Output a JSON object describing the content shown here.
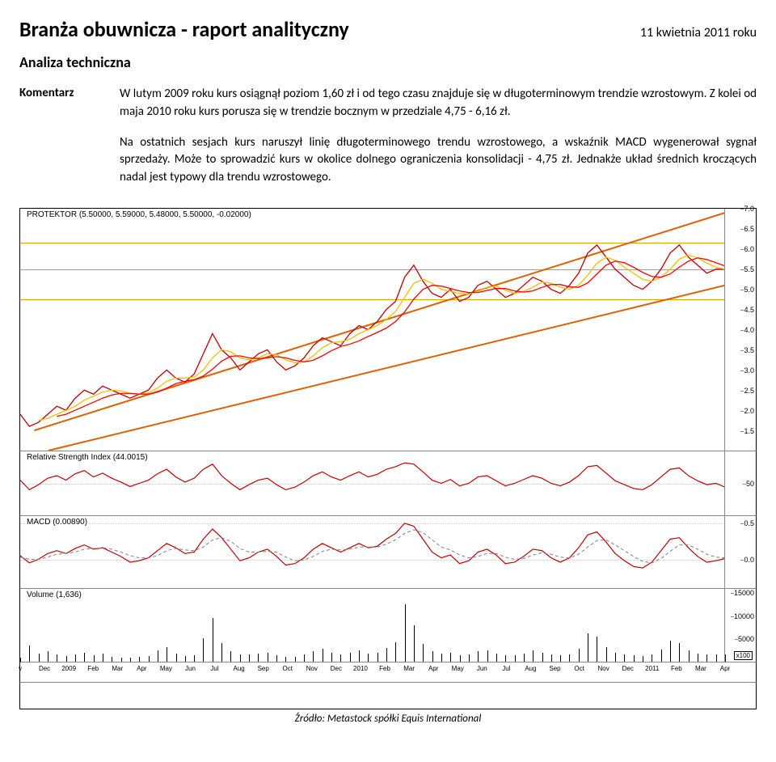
{
  "header": {
    "title": "Branża obuwnicza - raport analityczny",
    "date": "11 kwietnia 2011 roku",
    "subtitle": "Analiza techniczna",
    "label": "Komentarz"
  },
  "paragraphs": {
    "p1": "W lutym 2009 roku kurs osiągnął poziom 1,60 zł i od tego czasu znajduje się w długoterminowym trendzie wzrostowym. Z kolei od maja 2010 roku kurs porusza się w trendzie bocznym w przedziale 4,75 - 6,16 zł.",
    "p2": "Na ostatnich sesjach kurs naruszył linię długoterminowego trendu wzrostowego, a wskaźnik MACD wygenerował sygnał sprzedaży. Może to sprowadzić kurs w okolice dolnego ograniczenia konsolidacji - 4,75 zł. Jednakże układ średnich kroczących nadal jest typowy dla trendu wzrostowego."
  },
  "chart": {
    "price": {
      "title": "PROTEKTOR (5.50000, 5.59000, 5.48000, 5.50000, -0.02000)",
      "ylim": [
        1.0,
        7.0
      ],
      "ticks": [
        1.5,
        2.0,
        2.5,
        3.0,
        3.5,
        4.0,
        4.5,
        5.0,
        5.5,
        6.0,
        6.5,
        7.0
      ],
      "h_lines": [
        {
          "y": 4.75,
          "color": "#d9a300",
          "w": 1.5
        },
        {
          "y": 5.5,
          "color": "#d9a300",
          "w": 1.5
        },
        {
          "y": 6.16,
          "color": "#d9a300",
          "w": 1.5
        }
      ],
      "trend_lines": [
        {
          "x1": 2,
          "y1": 1.5,
          "x2": 100,
          "y2": 6.9,
          "color": "#e06000",
          "w": 2
        },
        {
          "x1": 4,
          "y1": 1.0,
          "x2": 100,
          "y2": 5.1,
          "color": "#e06000",
          "w": 2
        }
      ],
      "series": {
        "price": {
          "color": "#c00000",
          "w": 1.3,
          "points": [
            1.9,
            1.6,
            1.7,
            1.9,
            2.1,
            2.0,
            2.3,
            2.5,
            2.4,
            2.6,
            2.5,
            2.4,
            2.3,
            2.4,
            2.5,
            2.8,
            3.0,
            2.8,
            2.7,
            2.9,
            3.4,
            3.9,
            3.5,
            3.3,
            3.0,
            3.2,
            3.4,
            3.5,
            3.2,
            3.0,
            3.1,
            3.3,
            3.6,
            3.8,
            3.7,
            3.6,
            3.9,
            4.1,
            4.0,
            4.2,
            4.5,
            4.7,
            5.3,
            5.6,
            5.2,
            4.9,
            4.8,
            5.0,
            4.7,
            4.8,
            5.1,
            5.2,
            5.0,
            4.8,
            4.9,
            5.1,
            5.3,
            5.2,
            5.0,
            4.9,
            5.1,
            5.4,
            5.9,
            6.1,
            5.8,
            5.5,
            5.3,
            5.1,
            5.0,
            5.2,
            5.5,
            5.9,
            6.1,
            5.8,
            5.6,
            5.4,
            5.5,
            5.5
          ]
        },
        "ma1": {
          "color": "#f0c000",
          "w": 1.3,
          "points": [
            null,
            null,
            1.75,
            1.8,
            1.9,
            2.0,
            2.1,
            2.25,
            2.35,
            2.45,
            2.5,
            2.48,
            2.42,
            2.4,
            2.43,
            2.55,
            2.72,
            2.8,
            2.8,
            2.82,
            3.0,
            3.3,
            3.5,
            3.45,
            3.3,
            3.25,
            3.3,
            3.4,
            3.38,
            3.25,
            3.18,
            3.2,
            3.35,
            3.55,
            3.68,
            3.7,
            3.76,
            3.9,
            4.0,
            4.1,
            4.25,
            4.45,
            4.8,
            5.15,
            5.25,
            5.15,
            5.0,
            4.95,
            4.9,
            4.88,
            4.95,
            5.05,
            5.08,
            4.98,
            4.9,
            4.95,
            5.05,
            5.18,
            5.15,
            5.05,
            5.0,
            5.1,
            5.35,
            5.65,
            5.8,
            5.72,
            5.55,
            5.4,
            5.25,
            5.2,
            5.3,
            5.5,
            5.75,
            5.85,
            5.78,
            5.65,
            5.55,
            5.5
          ]
        },
        "ma2": {
          "color": "#ff0000",
          "w": 1.3,
          "points": [
            null,
            null,
            null,
            null,
            1.85,
            1.9,
            2.0,
            2.1,
            2.2,
            2.3,
            2.38,
            2.42,
            2.42,
            2.4,
            2.4,
            2.45,
            2.55,
            2.66,
            2.72,
            2.76,
            2.85,
            3.02,
            3.22,
            3.34,
            3.35,
            3.3,
            3.28,
            3.3,
            3.33,
            3.3,
            3.24,
            3.2,
            3.24,
            3.35,
            3.48,
            3.58,
            3.64,
            3.72,
            3.83,
            3.93,
            4.04,
            4.2,
            4.44,
            4.76,
            5.0,
            5.1,
            5.08,
            5.02,
            4.96,
            4.92,
            4.92,
            4.97,
            5.02,
            5.02,
            4.96,
            4.93,
            4.96,
            5.05,
            5.12,
            5.12,
            5.06,
            5.05,
            5.16,
            5.38,
            5.6,
            5.7,
            5.66,
            5.55,
            5.42,
            5.32,
            5.3,
            5.38,
            5.55,
            5.7,
            5.78,
            5.74,
            5.66,
            5.58
          ]
        }
      }
    },
    "rsi": {
      "title": "Relative Strength Index (44.0015)",
      "ylim": [
        0,
        100
      ],
      "ticks": [
        50
      ],
      "series": {
        "color": "#c00000",
        "w": 1.2,
        "points": [
          55,
          40,
          48,
          58,
          62,
          55,
          65,
          70,
          60,
          66,
          58,
          52,
          45,
          50,
          55,
          65,
          72,
          60,
          52,
          58,
          72,
          80,
          62,
          50,
          40,
          48,
          55,
          58,
          48,
          40,
          44,
          52,
          62,
          68,
          60,
          55,
          62,
          68,
          60,
          64,
          72,
          76,
          82,
          80,
          68,
          55,
          50,
          56,
          46,
          50,
          60,
          62,
          54,
          46,
          50,
          56,
          62,
          58,
          50,
          46,
          52,
          62,
          76,
          78,
          66,
          54,
          48,
          42,
          40,
          48,
          60,
          72,
          74,
          62,
          54,
          48,
          50,
          44
        ]
      }
    },
    "macd": {
      "title": "MACD (0.00890)",
      "ylim": [
        -0.4,
        0.6
      ],
      "ticks": [
        0.0,
        0.5
      ],
      "series": {
        "macd": {
          "color": "#c00000",
          "w": 1.2,
          "points": [
            0.05,
            -0.05,
            0.0,
            0.08,
            0.12,
            0.08,
            0.15,
            0.2,
            0.14,
            0.16,
            0.1,
            0.04,
            -0.04,
            -0.02,
            0.02,
            0.12,
            0.22,
            0.16,
            0.08,
            0.1,
            0.28,
            0.42,
            0.3,
            0.14,
            -0.02,
            0.02,
            0.1,
            0.14,
            0.04,
            -0.08,
            -0.06,
            0.02,
            0.14,
            0.22,
            0.16,
            0.1,
            0.16,
            0.22,
            0.16,
            0.18,
            0.28,
            0.36,
            0.5,
            0.46,
            0.28,
            0.1,
            0.02,
            0.06,
            -0.06,
            -0.02,
            0.1,
            0.14,
            0.06,
            -0.06,
            -0.04,
            0.04,
            0.14,
            0.12,
            0.02,
            -0.04,
            0.02,
            0.16,
            0.34,
            0.38,
            0.24,
            0.08,
            -0.02,
            -0.1,
            -0.12,
            -0.04,
            0.12,
            0.28,
            0.3,
            0.16,
            0.04,
            -0.04,
            -0.02,
            0.01
          ]
        },
        "signal": {
          "color": "#808080",
          "dash": "4,3",
          "w": 1.0,
          "points": [
            0.03,
            0.0,
            0.0,
            0.03,
            0.07,
            0.08,
            0.1,
            0.14,
            0.15,
            0.16,
            0.14,
            0.1,
            0.05,
            0.02,
            0.02,
            0.05,
            0.12,
            0.15,
            0.13,
            0.12,
            0.17,
            0.27,
            0.3,
            0.25,
            0.15,
            0.1,
            0.1,
            0.11,
            0.1,
            0.03,
            -0.02,
            -0.01,
            0.04,
            0.11,
            0.14,
            0.13,
            0.14,
            0.17,
            0.17,
            0.17,
            0.21,
            0.27,
            0.36,
            0.41,
            0.37,
            0.27,
            0.17,
            0.13,
            0.06,
            0.02,
            0.04,
            0.08,
            0.08,
            0.03,
            0.0,
            0.01,
            0.06,
            0.09,
            0.07,
            0.03,
            0.02,
            0.07,
            0.17,
            0.26,
            0.27,
            0.2,
            0.12,
            0.04,
            -0.03,
            -0.05,
            0.01,
            0.11,
            0.2,
            0.2,
            0.14,
            0.07,
            0.03,
            0.02
          ]
        }
      }
    },
    "volume": {
      "title": "Volume (1,636)",
      "ylim": [
        0,
        16000
      ],
      "ticks": [
        5000,
        10000,
        15000
      ],
      "x100": "x100",
      "bars": [
        900,
        3500,
        1800,
        2200,
        1500,
        1200,
        1600,
        2000,
        1400,
        1800,
        1100,
        900,
        800,
        1000,
        1200,
        2400,
        3200,
        1800,
        1200,
        1400,
        5200,
        9500,
        4000,
        2200,
        1500,
        1600,
        1800,
        2000,
        1300,
        1000,
        1100,
        1500,
        2200,
        2800,
        1900,
        1500,
        2000,
        2400,
        1700,
        1900,
        3000,
        4200,
        12500,
        8000,
        3800,
        2200,
        1700,
        2000,
        1400,
        1500,
        2200,
        2500,
        1800,
        1300,
        1400,
        1800,
        2400,
        2000,
        1500,
        1300,
        1600,
        2800,
        6200,
        5500,
        3200,
        2000,
        1600,
        1300,
        1200,
        1500,
        2600,
        4500,
        4000,
        2400,
        1800,
        1500,
        1600,
        1636
      ]
    },
    "xaxis": {
      "labels": [
        "v",
        "Dec",
        "2009",
        "Feb",
        "Mar",
        "Apr",
        "May",
        "Jun",
        "Jul",
        "Aug",
        "Sep",
        "Oct",
        "Nov",
        "Dec",
        "2010",
        "Feb",
        "Mar",
        "Apr",
        "May",
        "Jun",
        "Jul",
        "Aug",
        "Sep",
        "Oct",
        "Nov",
        "Dec",
        "2011",
        "Feb",
        "Mar",
        "Apr"
      ]
    }
  },
  "source": "Źródło: Metastock spółki Equis International"
}
